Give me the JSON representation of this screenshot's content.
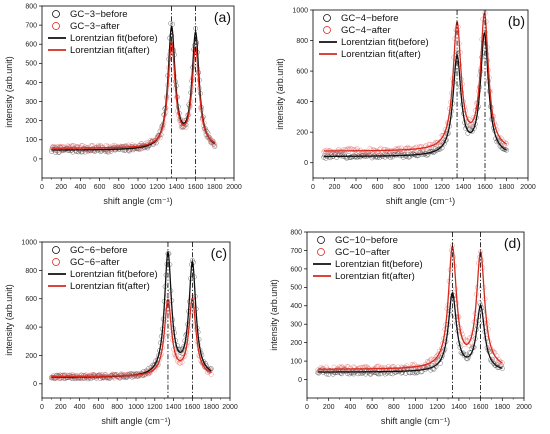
{
  "colors": {
    "before": "#111111",
    "after": "#d62a1e",
    "before_marker": "#333333",
    "after_marker": "#e06060"
  },
  "chart_data": [
    {
      "type": "line",
      "panel_label": "(a)",
      "xlabel": "shift angle (cm⁻¹)",
      "ylabel": "intensity (arb.unit)",
      "xlim": [
        0,
        2000
      ],
      "ylim": [
        -100,
        800
      ],
      "x_ticks": [
        0,
        200,
        400,
        600,
        800,
        1000,
        1200,
        1400,
        1600,
        1800,
        2000
      ],
      "y_ticks": [
        0,
        100,
        200,
        300,
        400,
        500,
        600,
        700,
        800
      ],
      "x_tick_labels": [
        "0",
        "200",
        "400",
        "600",
        "800",
        "1000",
        "1200",
        "1400",
        "1600",
        "1800",
        "2000"
      ],
      "y_tick_labels": [
        "0",
        "100",
        "200",
        "300",
        "400",
        "500",
        "600",
        "700",
        "800"
      ],
      "reference_lines_x": [
        1350,
        1600
      ],
      "legend_position": "top-left",
      "series": [
        {
          "name": "GC−3−before",
          "kind": "scatter",
          "baseline": 45,
          "peaks": [
            {
              "center": 1350,
              "height": 630
            },
            {
              "center": 1600,
              "height": 600
            }
          ]
        },
        {
          "name": "GC−3−after",
          "kind": "scatter",
          "baseline": 55,
          "peaks": [
            {
              "center": 1350,
              "height": 540
            },
            {
              "center": 1600,
              "height": 510
            }
          ]
        },
        {
          "name": "Lorentzian fit(before)",
          "kind": "line",
          "baseline": 45,
          "peaks": [
            {
              "center": 1350,
              "height": 630
            },
            {
              "center": 1600,
              "height": 600
            }
          ]
        },
        {
          "name": "Lorentzian fit(after)",
          "kind": "line",
          "baseline": 55,
          "peaks": [
            {
              "center": 1350,
              "height": 540
            },
            {
              "center": 1600,
              "height": 510
            }
          ]
        }
      ]
    },
    {
      "type": "line",
      "panel_label": "(b)",
      "xlabel": "shift angle (cm⁻¹)",
      "ylabel": "intensity (arb.unit)",
      "xlim": [
        0,
        2000
      ],
      "ylim": [
        -100,
        1000
      ],
      "x_ticks": [
        0,
        200,
        400,
        600,
        800,
        1000,
        1200,
        1400,
        1600,
        1800,
        2000
      ],
      "y_ticks": [
        0,
        200,
        400,
        600,
        800,
        1000
      ],
      "x_tick_labels": [
        "0",
        "200",
        "400",
        "600",
        "800",
        "1000",
        "1200",
        "1400",
        "1600",
        "1800",
        "2000"
      ],
      "y_tick_labels": [
        "0",
        "200",
        "400",
        "600",
        "800",
        "1000"
      ],
      "reference_lines_x": [
        1340,
        1600
      ],
      "legend_position": "top-left",
      "series": [
        {
          "name": "GC−4−before",
          "kind": "scatter",
          "baseline": 40,
          "peaks": [
            {
              "center": 1340,
              "height": 640
            },
            {
              "center": 1595,
              "height": 790
            }
          ]
        },
        {
          "name": "GC−4−after",
          "kind": "scatter",
          "baseline": 75,
          "peaks": [
            {
              "center": 1340,
              "height": 820
            },
            {
              "center": 1595,
              "height": 880
            }
          ]
        },
        {
          "name": "Lorentzian fit(before)",
          "kind": "line",
          "baseline": 40,
          "peaks": [
            {
              "center": 1340,
              "height": 640
            },
            {
              "center": 1595,
              "height": 790
            }
          ]
        },
        {
          "name": "Lorentzian fit(after)",
          "kind": "line",
          "baseline": 75,
          "peaks": [
            {
              "center": 1340,
              "height": 820
            },
            {
              "center": 1595,
              "height": 880
            }
          ]
        }
      ]
    },
    {
      "type": "line",
      "panel_label": "(c)",
      "xlabel": "shift angle (cm⁻¹)",
      "ylabel": "intensity (arb.unit)",
      "xlim": [
        0,
        2000
      ],
      "ylim": [
        -100,
        1000
      ],
      "x_ticks": [
        0,
        200,
        400,
        600,
        800,
        1000,
        1200,
        1400,
        1600,
        1800,
        2000
      ],
      "y_ticks": [
        0,
        200,
        400,
        600,
        800,
        1000
      ],
      "x_tick_labels": [
        "0",
        "200",
        "400",
        "600",
        "800",
        "1000",
        "1200",
        "1400",
        "1600",
        "1800",
        "2000"
      ],
      "y_tick_labels": [
        "0",
        "200",
        "400",
        "600",
        "800",
        "1000"
      ],
      "reference_lines_x": [
        1340,
        1600
      ],
      "legend_position": "top-left",
      "series": [
        {
          "name": "GC−6−before",
          "kind": "scatter",
          "baseline": 45,
          "peaks": [
            {
              "center": 1340,
              "height": 860
            },
            {
              "center": 1600,
              "height": 790
            }
          ]
        },
        {
          "name": "GC−6−after",
          "kind": "scatter",
          "baseline": 50,
          "peaks": [
            {
              "center": 1340,
              "height": 530
            },
            {
              "center": 1600,
              "height": 540
            }
          ]
        },
        {
          "name": "Lorentzian fit(before)",
          "kind": "line",
          "baseline": 45,
          "peaks": [
            {
              "center": 1340,
              "height": 860
            },
            {
              "center": 1600,
              "height": 790
            }
          ]
        },
        {
          "name": "Lorentzian fit(after)",
          "kind": "line",
          "baseline": 50,
          "peaks": [
            {
              "center": 1340,
              "height": 530
            },
            {
              "center": 1600,
              "height": 540
            }
          ]
        }
      ]
    },
    {
      "type": "line",
      "panel_label": "(d)",
      "xlabel": "shift angle (cm⁻¹)",
      "ylabel": "intensity (arb.unit)",
      "xlim": [
        0,
        2000
      ],
      "ylim": [
        -100,
        800
      ],
      "x_ticks": [
        0,
        200,
        400,
        600,
        800,
        1000,
        1200,
        1400,
        1600,
        1800,
        2000
      ],
      "y_ticks": [
        0,
        100,
        200,
        300,
        400,
        500,
        600,
        700,
        800
      ],
      "x_tick_labels": [
        "0",
        "200",
        "400",
        "600",
        "800",
        "1000",
        "1200",
        "1400",
        "1600",
        "1800",
        "2000"
      ],
      "y_tick_labels": [
        "0",
        "100",
        "200",
        "300",
        "400",
        "500",
        "600",
        "700",
        "800"
      ],
      "reference_lines_x": [
        1340,
        1600
      ],
      "legend_position": "top-left",
      "series": [
        {
          "name": "GC−10−before",
          "kind": "scatter",
          "baseline": 40,
          "peaks": [
            {
              "center": 1340,
              "height": 420
            },
            {
              "center": 1600,
              "height": 350
            }
          ]
        },
        {
          "name": "GC−10−after",
          "kind": "scatter",
          "baseline": 55,
          "peaks": [
            {
              "center": 1340,
              "height": 650
            },
            {
              "center": 1600,
              "height": 620
            }
          ]
        },
        {
          "name": "Lorentzian fit(before)",
          "kind": "line",
          "baseline": 40,
          "peaks": [
            {
              "center": 1340,
              "height": 420
            },
            {
              "center": 1600,
              "height": 350
            }
          ]
        },
        {
          "name": "Lorentzian fit(after)",
          "kind": "line",
          "baseline": 55,
          "peaks": [
            {
              "center": 1340,
              "height": 650
            },
            {
              "center": 1600,
              "height": 620
            }
          ]
        }
      ]
    }
  ]
}
